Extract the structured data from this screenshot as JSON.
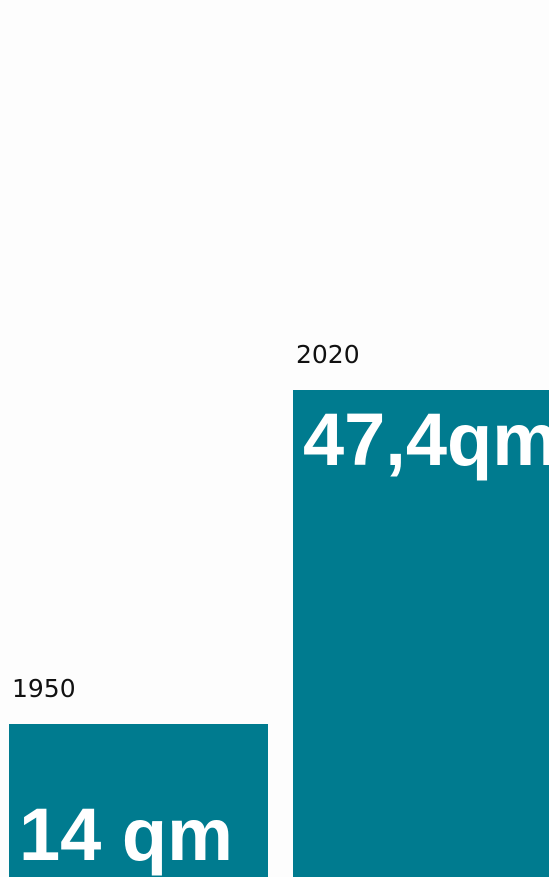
{
  "chart_data": {
    "type": "bar",
    "categories": [
      "1950",
      "2020"
    ],
    "values": [
      14,
      47.4
    ],
    "value_labels": [
      "14 qm",
      "47,4qm"
    ],
    "color": "#007b8f"
  }
}
